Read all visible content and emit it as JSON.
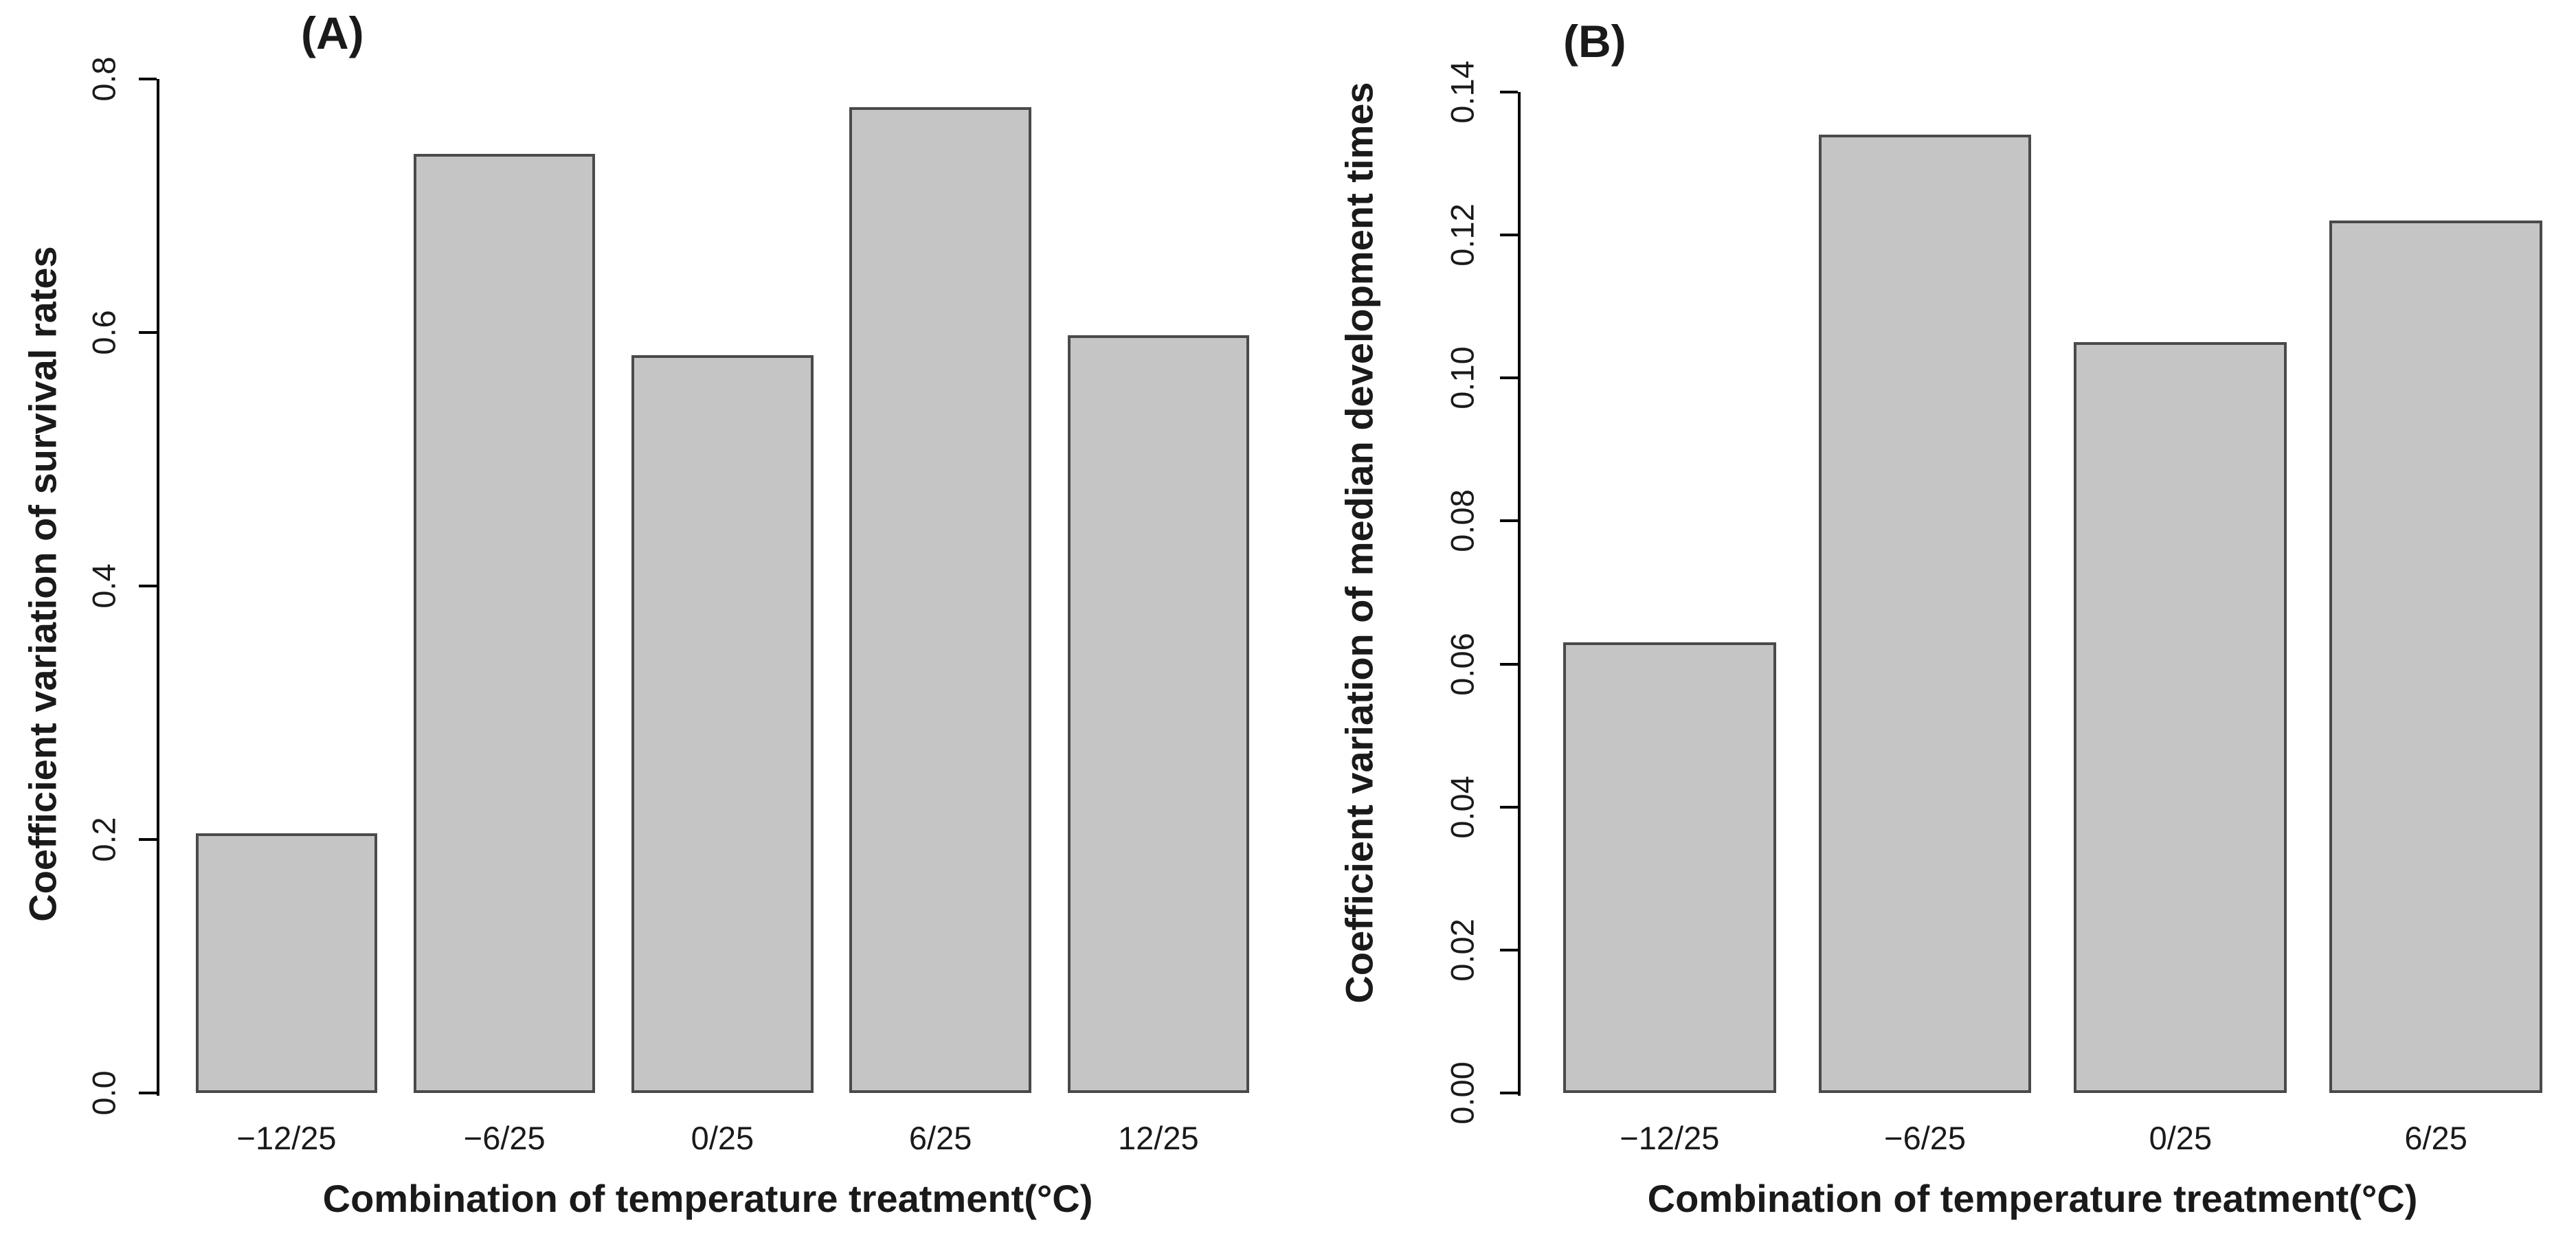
{
  "chart_data": [
    {
      "type": "bar",
      "panel_label": "(A)",
      "ylabel": "Coefficient variation of survival rates",
      "xlabel": "Combination of temperature treatment(°C)",
      "categories": [
        "−12/25",
        "−6/25",
        "0/25",
        "6/25",
        "12/25"
      ],
      "values": [
        0.205,
        0.741,
        0.582,
        0.778,
        0.598
      ],
      "ylim": [
        0,
        0.8
      ],
      "y_tick_labels": [
        "0.0",
        "0.2",
        "0.4",
        "0.6",
        "0.8"
      ],
      "grid": false,
      "legend": "none",
      "bar_fill": "#c5c5c5",
      "bar_border": "#4a4a4a"
    },
    {
      "type": "bar",
      "panel_label": "(B)",
      "ylabel": "Coefficient variation of median development times",
      "xlabel": "Combination of temperature treatment(°C)",
      "categories": [
        "−12/25",
        "−6/25",
        "0/25",
        "6/25"
      ],
      "values": [
        0.063,
        0.134,
        0.105,
        0.122
      ],
      "ylim": [
        0,
        0.14
      ],
      "y_tick_labels": [
        "0.00",
        "0.02",
        "0.04",
        "0.06",
        "0.08",
        "0.10",
        "0.12",
        "0.14"
      ],
      "grid": false,
      "legend": "none",
      "bar_fill": "#c5c5c5",
      "bar_border": "#4a4a4a"
    }
  ]
}
